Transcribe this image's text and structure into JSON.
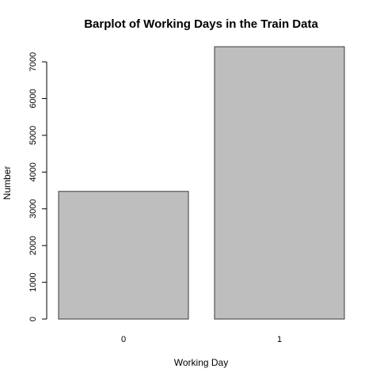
{
  "chart_data": {
    "type": "bar",
    "title": "Barplot of Working Days in the Train Data",
    "xlabel": "Working Day",
    "ylabel": "Number",
    "categories": [
      "0",
      "1"
    ],
    "values": [
      3474,
      7412
    ],
    "ylim": [
      0,
      7412
    ],
    "yticks": [
      0,
      1000,
      2000,
      3000,
      4000,
      5000,
      6000,
      7000
    ],
    "grid": false,
    "legend": "none",
    "bar_color": "#bebebe",
    "bar_border_color": "#3a3a3a"
  }
}
